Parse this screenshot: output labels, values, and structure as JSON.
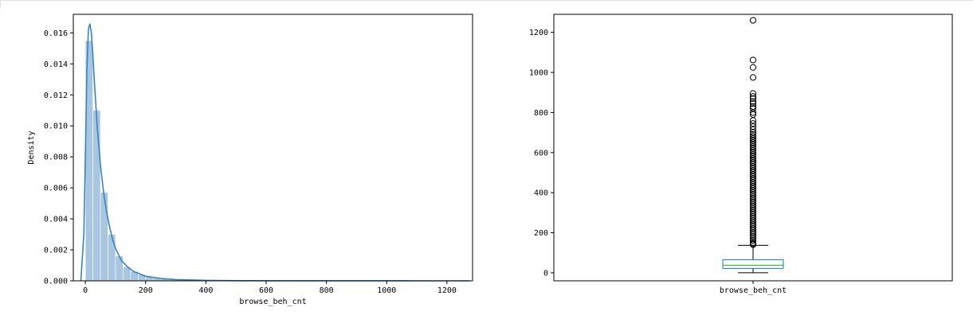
{
  "chart_data": [
    {
      "type": "histogram",
      "xlabel": "browse_beh_cnt",
      "ylabel": "Density",
      "xlim": [
        -40,
        1285
      ],
      "ylim": [
        0,
        0.0172
      ],
      "xticks": [
        0,
        200,
        400,
        600,
        800,
        1000,
        1200
      ],
      "yticks": [
        0.0,
        0.002,
        0.004,
        0.006,
        0.008,
        0.01,
        0.012,
        0.014,
        0.016
      ],
      "ytick_labels": [
        "0.000",
        "0.002",
        "0.004",
        "0.006",
        "0.008",
        "0.010",
        "0.012",
        "0.014",
        "0.016"
      ],
      "bin_width": 25,
      "bins": [
        {
          "x0": 0,
          "density": 0.0155
        },
        {
          "x0": 25,
          "density": 0.011
        },
        {
          "x0": 50,
          "density": 0.0057
        },
        {
          "x0": 75,
          "density": 0.003
        },
        {
          "x0": 100,
          "density": 0.0016
        },
        {
          "x0": 125,
          "density": 0.0009
        },
        {
          "x0": 150,
          "density": 0.0006
        },
        {
          "x0": 175,
          "density": 0.0004
        },
        {
          "x0": 200,
          "density": 0.00025
        },
        {
          "x0": 225,
          "density": 0.00018
        },
        {
          "x0": 250,
          "density": 0.00012
        },
        {
          "x0": 275,
          "density": 9e-05
        },
        {
          "x0": 300,
          "density": 7e-05
        },
        {
          "x0": 325,
          "density": 5e-05
        },
        {
          "x0": 350,
          "density": 4e-05
        }
      ],
      "kde": {
        "x": [
          -15,
          -5,
          0,
          5,
          10,
          15,
          20,
          25,
          30,
          40,
          50,
          60,
          70,
          80,
          90,
          100,
          120,
          140,
          160,
          180,
          200,
          250,
          300,
          400,
          500,
          700,
          900,
          1100,
          1275
        ],
        "y": [
          0.0,
          0.003,
          0.008,
          0.0135,
          0.0162,
          0.0166,
          0.016,
          0.0145,
          0.0128,
          0.0098,
          0.0075,
          0.0058,
          0.0045,
          0.0035,
          0.0027,
          0.0021,
          0.0013,
          0.0009,
          0.0006,
          0.00045,
          0.0003,
          0.00015,
          8e-05,
          3e-05,
          1e-05,
          5e-06,
          3e-06,
          2e-06,
          1e-06
        ]
      },
      "colors": {
        "bar": "#a8c6df",
        "line": "#3a84bb"
      }
    },
    {
      "type": "boxplot",
      "xlabel": "browse_beh_cnt",
      "ylim": [
        -40,
        1290
      ],
      "yticks": [
        0,
        200,
        400,
        600,
        800,
        1000,
        1200
      ],
      "box": {
        "whisker_low": 0,
        "q1": 22,
        "median": 38,
        "q3": 65,
        "whisker_high": 137
      },
      "outliers": [
        1260,
        1062,
        1025,
        975,
        895,
        880,
        870,
        855,
        845,
        830,
        820,
        800,
        790,
        760,
        745,
        730,
        715,
        700,
        690,
        680,
        670,
        660,
        650,
        640,
        630,
        620,
        610,
        600,
        590,
        580,
        570,
        560,
        550,
        540,
        530,
        520,
        510,
        500,
        490,
        480,
        470,
        460,
        450,
        440,
        430,
        420,
        410,
        400,
        390,
        380,
        370,
        360,
        350,
        340,
        330,
        320,
        310,
        300,
        290,
        280,
        270,
        260,
        250,
        240,
        230,
        220,
        210,
        200,
        190,
        180,
        170,
        160,
        150,
        145,
        140
      ],
      "colors": {
        "box": "#1f77b4",
        "median": "#2ca02c",
        "whisker": "#000000",
        "outlier": "#000000"
      }
    }
  ]
}
